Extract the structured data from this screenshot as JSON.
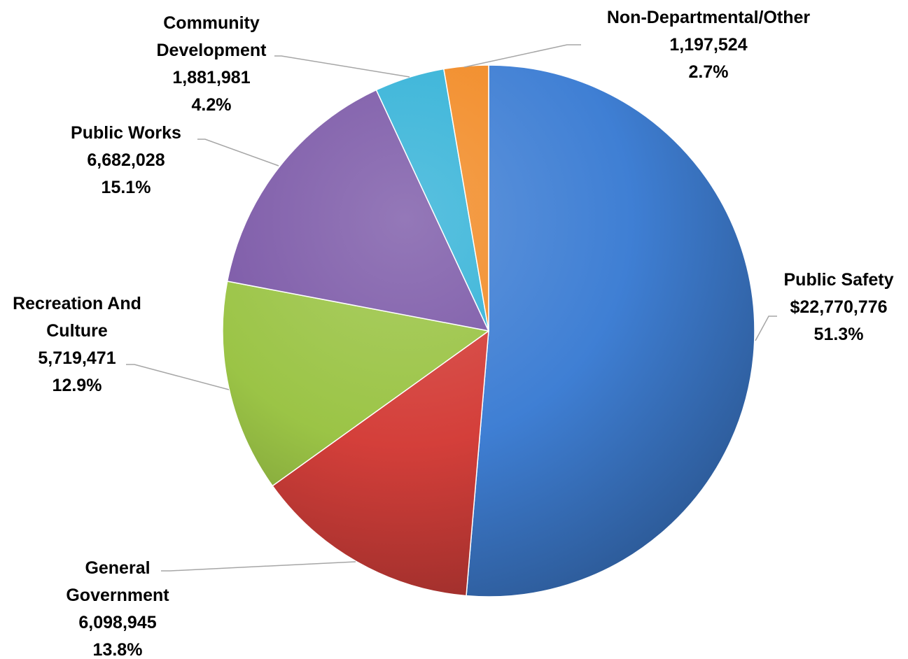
{
  "chart_data": {
    "type": "pie",
    "title": "",
    "slices": [
      {
        "label_lines": [
          "Public Safety"
        ],
        "value_label": "$22,770,776",
        "value": 22770776,
        "percent_label": "51.3%",
        "percent": 51.3,
        "color": "#3f7fd4"
      },
      {
        "label_lines": [
          "General",
          "Government"
        ],
        "value_label": "6,098,945",
        "value": 6098945,
        "percent_label": "13.8%",
        "percent": 13.8,
        "color": "#d43f3a"
      },
      {
        "label_lines": [
          "Recreation And",
          "Culture"
        ],
        "value_label": "5,719,471",
        "value": 5719471,
        "percent_label": "12.9%",
        "percent": 12.9,
        "color": "#9bc446"
      },
      {
        "label_lines": [
          "Public Works"
        ],
        "value_label": "6,682,028",
        "value": 6682028,
        "percent_label": "15.1%",
        "percent": 15.1,
        "color": "#7d5aa8"
      },
      {
        "label_lines": [
          "Community",
          "Development"
        ],
        "value_label": "1,881,981",
        "value": 1881981,
        "percent_label": "4.2%",
        "percent": 4.2,
        "color": "#36b3d8"
      },
      {
        "label_lines": [
          "Non-Departmental/Other"
        ],
        "value_label": "1,197,524",
        "value": 1197524,
        "percent_label": "2.7%",
        "percent": 2.7,
        "color": "#f28c28"
      }
    ],
    "start_angle_deg": 0,
    "direction": "clockwise",
    "legend": "none",
    "data_labels": "outside-with-leader-lines"
  }
}
